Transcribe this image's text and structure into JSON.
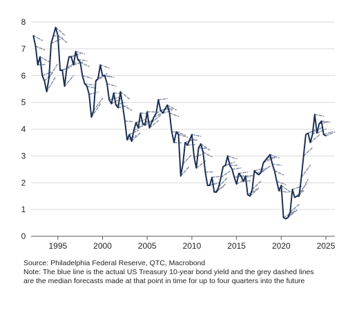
{
  "chart_data": {
    "type": "line",
    "xlim": [
      1992.0,
      2026.0
    ],
    "ylim": [
      0,
      8
    ],
    "x_ticks": [
      1995,
      2000,
      2005,
      2010,
      2015,
      2020,
      2025
    ],
    "y_ticks": [
      0,
      1,
      2,
      3,
      4,
      5,
      6,
      7,
      8
    ],
    "grid": "horizontal",
    "legend": "none",
    "colors": {
      "actual": "#1b2f55",
      "forecast": "#8b93a8",
      "grid": "#d9d9d9",
      "axis": "#555555"
    },
    "series": [
      {
        "style": "solid",
        "x": [
          1992.25,
          1992.5,
          1992.75,
          1993.0,
          1993.25,
          1993.5,
          1993.75,
          1994.0,
          1994.25,
          1994.5,
          1994.75,
          1995.0,
          1995.25,
          1995.5,
          1995.75,
          1996.0,
          1996.25,
          1996.5,
          1996.75,
          1997.0,
          1997.25,
          1997.5,
          1997.75,
          1998.0,
          1998.25,
          1998.5,
          1998.75,
          1999.0,
          1999.25,
          1999.5,
          1999.75,
          2000.0,
          2000.25,
          2000.5,
          2000.75,
          2001.0,
          2001.25,
          2001.5,
          2001.75,
          2002.0,
          2002.25,
          2002.5,
          2002.75,
          2003.0,
          2003.25,
          2003.5,
          2003.75,
          2004.0,
          2004.25,
          2004.5,
          2004.75,
          2005.0,
          2005.25,
          2005.5,
          2005.75,
          2006.0,
          2006.25,
          2006.5,
          2006.75,
          2007.0,
          2007.25,
          2007.5,
          2007.75,
          2008.0,
          2008.25,
          2008.5,
          2008.75,
          2009.0,
          2009.25,
          2009.5,
          2009.75,
          2010.0,
          2010.25,
          2010.5,
          2010.75,
          2011.0,
          2011.25,
          2011.5,
          2011.75,
          2012.0,
          2012.25,
          2012.5,
          2012.75,
          2013.0,
          2013.25,
          2013.5,
          2013.75,
          2014.0,
          2014.25,
          2014.5,
          2014.75,
          2015.0,
          2015.25,
          2015.5,
          2015.75,
          2016.0,
          2016.25,
          2016.5,
          2016.75,
          2017.0,
          2017.25,
          2017.5,
          2017.75,
          2018.0,
          2018.25,
          2018.5,
          2018.75,
          2019.0,
          2019.25,
          2019.5,
          2019.75,
          2020.0,
          2020.25,
          2020.5,
          2020.75,
          2021.0,
          2021.25,
          2021.5,
          2021.75,
          2022.0,
          2022.25,
          2022.5,
          2022.75,
          2023.0,
          2023.25,
          2023.5,
          2023.75,
          2024.0,
          2024.25,
          2024.5,
          2024.75,
          2025.0
        ],
        "y": [
          7.5,
          7.1,
          6.4,
          6.7,
          6.0,
          5.8,
          5.4,
          5.9,
          7.2,
          7.5,
          7.8,
          7.5,
          6.2,
          6.2,
          5.6,
          6.3,
          6.7,
          6.7,
          6.4,
          6.9,
          6.6,
          6.5,
          6.0,
          5.7,
          5.6,
          5.3,
          4.45,
          4.7,
          5.8,
          5.9,
          6.4,
          6.0,
          6.0,
          5.7,
          5.1,
          4.95,
          5.35,
          4.9,
          4.8,
          5.4,
          4.9,
          4.3,
          3.6,
          3.8,
          3.55,
          3.95,
          4.25,
          4.05,
          4.6,
          4.2,
          4.15,
          4.65,
          4.05,
          4.25,
          4.45,
          4.6,
          5.1,
          4.7,
          4.6,
          4.75,
          4.9,
          4.6,
          3.9,
          3.5,
          3.9,
          3.8,
          2.25,
          2.7,
          3.5,
          3.4,
          3.6,
          3.8,
          2.95,
          2.55,
          3.3,
          3.45,
          3.15,
          2.4,
          1.9,
          1.9,
          2.2,
          1.65,
          1.65,
          1.85,
          2.2,
          2.6,
          2.65,
          3.0,
          2.65,
          2.5,
          2.2,
          1.95,
          2.35,
          2.25,
          2.05,
          2.25,
          1.55,
          1.5,
          1.75,
          2.45,
          2.35,
          2.3,
          2.4,
          2.75,
          2.85,
          2.95,
          3.05,
          2.7,
          2.45,
          2.05,
          1.7,
          1.9,
          0.7,
          0.65,
          0.7,
          0.9,
          1.75,
          1.45,
          1.5,
          1.5,
          2.2,
          3.0,
          3.8,
          3.85,
          3.5,
          3.8,
          4.55,
          3.85,
          4.2,
          4.3,
          3.8,
          3.75
        ]
      }
    ]
  },
  "notes": {
    "source": "Source: Philadelphia Federal Reserve, QTC, Macrobond",
    "note_line1": "Note: The blue line is the actual US Treasury 10-year bond yield and the grey dashed lines",
    "note_line2": "are the median forecasts made at that point in time for up to four quarters into the future"
  }
}
